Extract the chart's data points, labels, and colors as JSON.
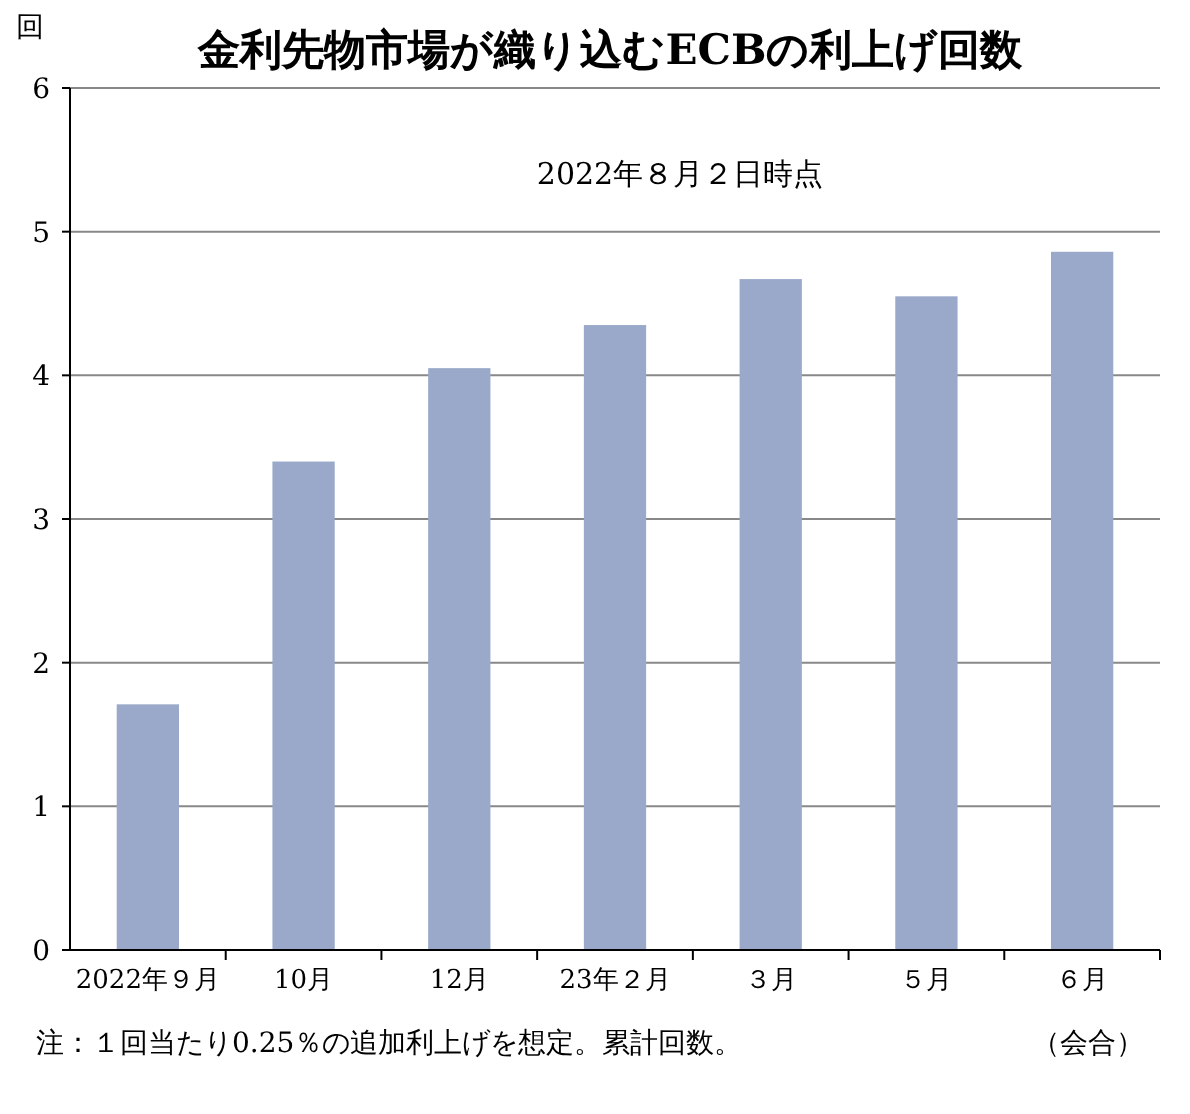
{
  "chart_data": {
    "type": "bar",
    "title": "金利先物市場が織り込むECBの利上げ回数",
    "ylabel": "回",
    "xlabel": "（会合）",
    "annotations": [
      "2022年８月２日時点",
      "注：１回当たり0.25％の追加利上げを想定。累計回数。"
    ],
    "categories": [
      "2022年９月",
      "10月",
      "12月",
      "23年２月",
      "３月",
      "５月",
      "６月"
    ],
    "values": [
      1.71,
      3.4,
      4.05,
      4.35,
      4.67,
      4.55,
      4.86
    ],
    "color": "#9aa9c9",
    "ylim": [
      0,
      6
    ],
    "yticks": [
      0,
      1,
      2,
      3,
      4,
      5,
      6
    ],
    "grid": "y"
  }
}
